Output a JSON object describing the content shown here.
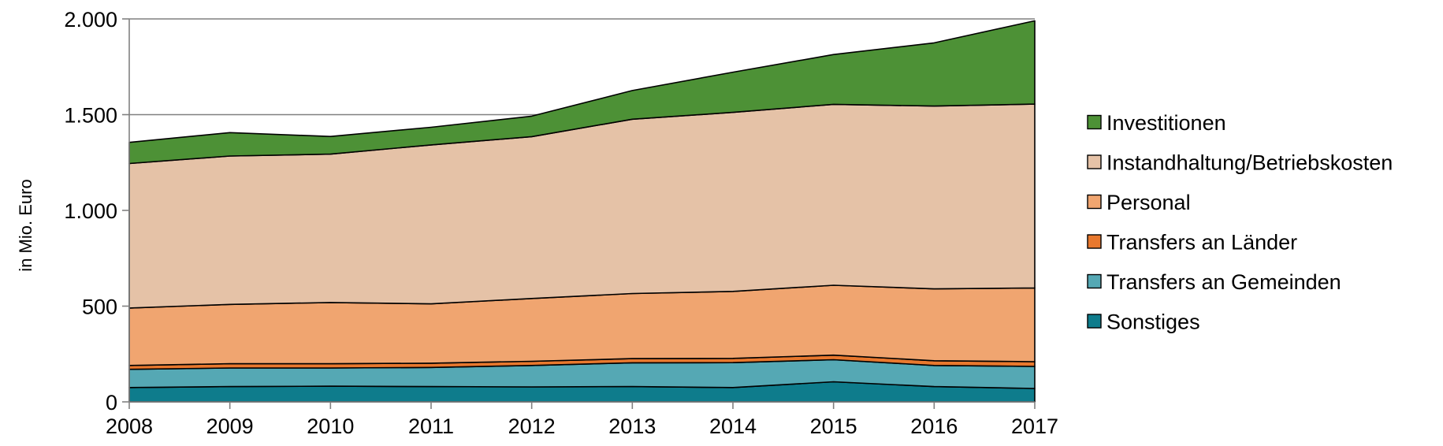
{
  "chart_data": {
    "type": "area",
    "stacked": true,
    "title": "",
    "xlabel": "",
    "ylabel": "in Mio. Euro",
    "x": [
      "2008",
      "2009",
      "2010",
      "2011",
      "2012",
      "2013",
      "2014",
      "2015",
      "2016",
      "2017"
    ],
    "ylim": [
      0,
      2000
    ],
    "yticks": [
      0,
      500,
      1000,
      1500,
      2000
    ],
    "ytick_labels": [
      "0",
      "500",
      "1.000",
      "1.500",
      "2.000"
    ],
    "grid": true,
    "legend_position": "right",
    "series": [
      {
        "name": "Sonstiges",
        "color": "#0e7c8c",
        "values": [
          75,
          80,
          82,
          80,
          78,
          80,
          75,
          105,
          80,
          70
        ]
      },
      {
        "name": "Transfers an Gemeinden",
        "color": "#55a8b4",
        "values": [
          95,
          97,
          95,
          100,
          112,
          124,
          130,
          115,
          110,
          115
        ]
      },
      {
        "name": "Transfers an Länder",
        "color": "#e8782e",
        "values": [
          20,
          22,
          22,
          22,
          22,
          22,
          22,
          24,
          25,
          25
        ]
      },
      {
        "name": "Personal",
        "color": "#f0a570",
        "values": [
          300,
          310,
          320,
          310,
          328,
          340,
          350,
          365,
          375,
          385
        ]
      },
      {
        "name": "Instandhaltung/Betriebskosten",
        "color": "#e5c2a7",
        "values": [
          755,
          775,
          775,
          830,
          845,
          910,
          935,
          945,
          955,
          960
        ]
      },
      {
        "name": "Investitionen",
        "color": "#4d9136",
        "values": [
          110,
          122,
          92,
          92,
          107,
          150,
          210,
          260,
          330,
          435
        ]
      }
    ],
    "legend_order": [
      "Investitionen",
      "Instandhaltung/Betriebskosten",
      "Personal",
      "Transfers an Länder",
      "Transfers an Gemeinden",
      "Sonstiges"
    ]
  }
}
